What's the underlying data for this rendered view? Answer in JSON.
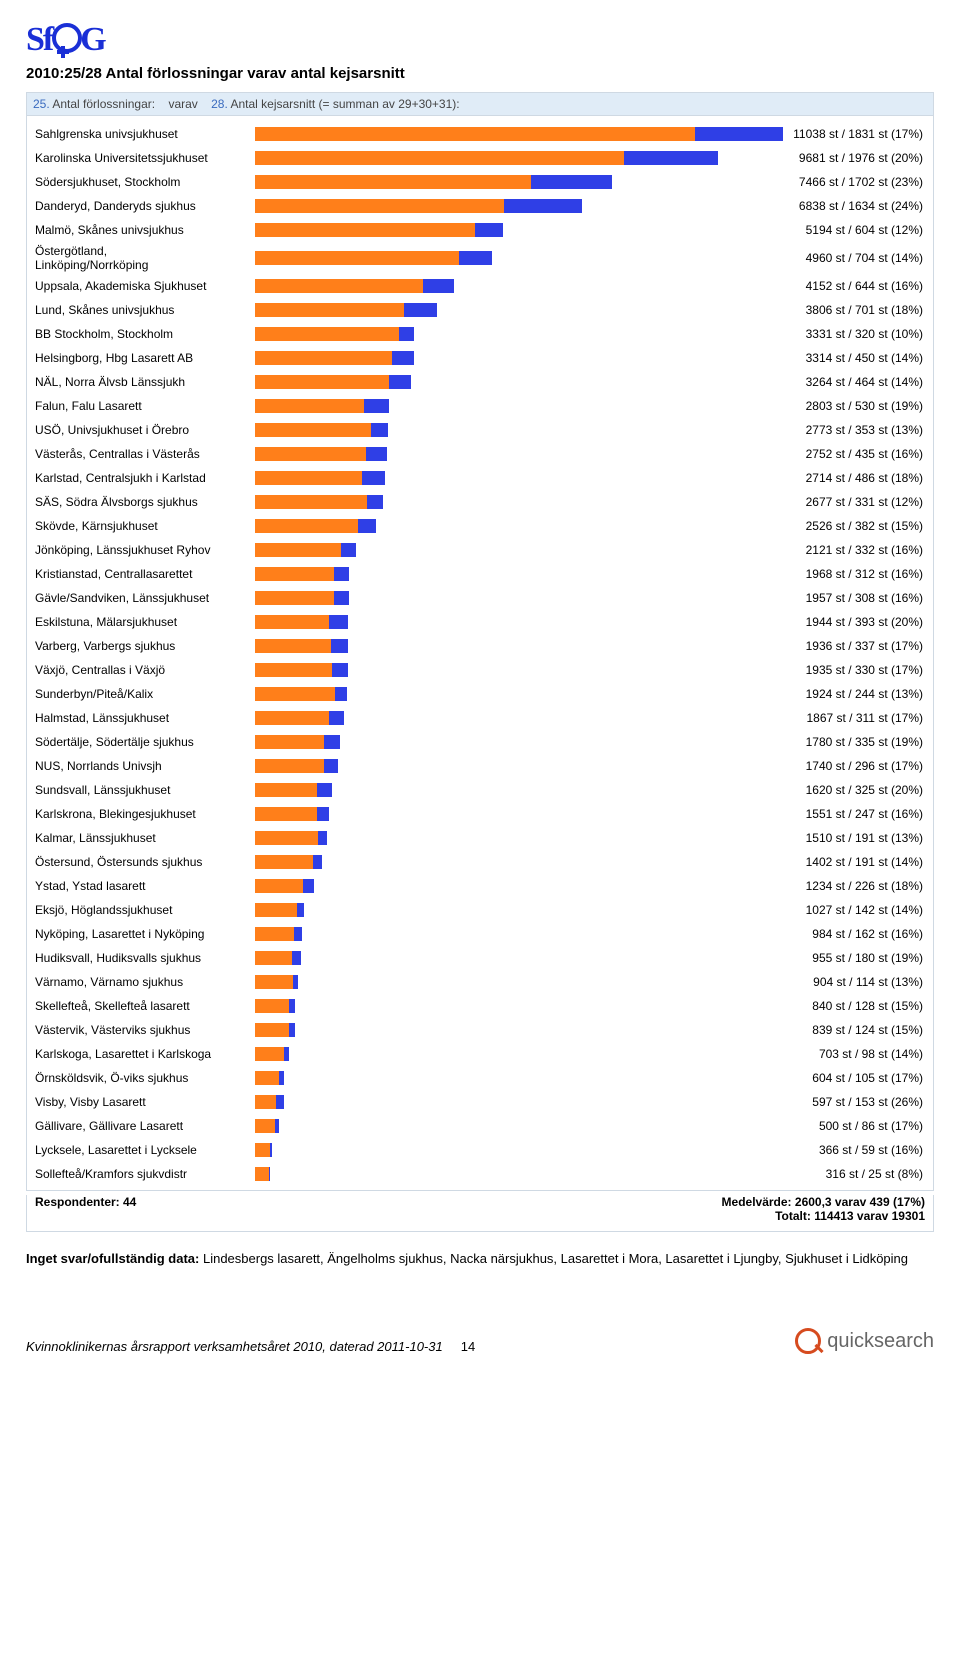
{
  "logo_text_left": "Sf",
  "logo_text_right": "G",
  "title": "2010:25/28 Antal förlossningar varav antal kejsarsnitt",
  "chart_header_html": {
    "n1": "25.",
    "t1": "Antal förlossningar:",
    "mid": "varav",
    "n2": "28.",
    "t2": "Antal kejsarsnitt (= summan av 29+30+31):"
  },
  "chart": {
    "type": "stacked-bar-horizontal",
    "max_total": 11038,
    "bar_colors": {
      "deliveries_minus_cs": "#ff7f1a",
      "csections": "#2f3fe6"
    },
    "background_color": "#ffffff",
    "font_size_labels": 12,
    "rows": [
      {
        "label": "Sahlgrenska univsjukhuset",
        "total": 11038,
        "cs": 1831,
        "pct": 17
      },
      {
        "label": "Karolinska Universitetssjukhuset",
        "total": 9681,
        "cs": 1976,
        "pct": 20
      },
      {
        "label": "Södersjukhuset, Stockholm",
        "total": 7466,
        "cs": 1702,
        "pct": 23
      },
      {
        "label": "Danderyd, Danderyds sjukhus",
        "total": 6838,
        "cs": 1634,
        "pct": 24
      },
      {
        "label": "Malmö, Skånes univsjukhus",
        "total": 5194,
        "cs": 604,
        "pct": 12
      },
      {
        "label": "Östergötland,\nLinköping/Norrköping",
        "total": 4960,
        "cs": 704,
        "pct": 14
      },
      {
        "label": "Uppsala, Akademiska Sjukhuset",
        "total": 4152,
        "cs": 644,
        "pct": 16
      },
      {
        "label": "Lund, Skånes univsjukhus",
        "total": 3806,
        "cs": 701,
        "pct": 18
      },
      {
        "label": "BB Stockholm, Stockholm",
        "total": 3331,
        "cs": 320,
        "pct": 10
      },
      {
        "label": "Helsingborg, Hbg Lasarett AB",
        "total": 3314,
        "cs": 450,
        "pct": 14
      },
      {
        "label": "NÄL, Norra Älvsb Länssjukh",
        "total": 3264,
        "cs": 464,
        "pct": 14
      },
      {
        "label": "Falun, Falu Lasarett",
        "total": 2803,
        "cs": 530,
        "pct": 19
      },
      {
        "label": "USÖ, Univsjukhuset i Örebro",
        "total": 2773,
        "cs": 353,
        "pct": 13
      },
      {
        "label": "Västerås, Centrallas i Västerås",
        "total": 2752,
        "cs": 435,
        "pct": 16
      },
      {
        "label": "Karlstad, Centralsjukh i Karlstad",
        "total": 2714,
        "cs": 486,
        "pct": 18
      },
      {
        "label": "SÄS, Södra Älvsborgs sjukhus",
        "total": 2677,
        "cs": 331,
        "pct": 12
      },
      {
        "label": "Skövde, Kärnsjukhuset",
        "total": 2526,
        "cs": 382,
        "pct": 15
      },
      {
        "label": "Jönköping, Länssjukhuset Ryhov",
        "total": 2121,
        "cs": 332,
        "pct": 16
      },
      {
        "label": "Kristianstad, Centrallasarettet",
        "total": 1968,
        "cs": 312,
        "pct": 16
      },
      {
        "label": "Gävle/Sandviken, Länssjukhuset",
        "total": 1957,
        "cs": 308,
        "pct": 16
      },
      {
        "label": "Eskilstuna, Mälarsjukhuset",
        "total": 1944,
        "cs": 393,
        "pct": 20
      },
      {
        "label": "Varberg, Varbergs sjukhus",
        "total": 1936,
        "cs": 337,
        "pct": 17
      },
      {
        "label": "Växjö, Centrallas i Växjö",
        "total": 1935,
        "cs": 330,
        "pct": 17
      },
      {
        "label": "Sunderbyn/Piteå/Kalix",
        "total": 1924,
        "cs": 244,
        "pct": 13
      },
      {
        "label": "Halmstad, Länssjukhuset",
        "total": 1867,
        "cs": 311,
        "pct": 17
      },
      {
        "label": "Södertälje, Södertälje sjukhus",
        "total": 1780,
        "cs": 335,
        "pct": 19
      },
      {
        "label": "NUS, Norrlands Univsjh",
        "total": 1740,
        "cs": 296,
        "pct": 17
      },
      {
        "label": "Sundsvall, Länssjukhuset",
        "total": 1620,
        "cs": 325,
        "pct": 20
      },
      {
        "label": "Karlskrona, Blekingesjukhuset",
        "total": 1551,
        "cs": 247,
        "pct": 16
      },
      {
        "label": "Kalmar, Länssjukhuset",
        "total": 1510,
        "cs": 191,
        "pct": 13
      },
      {
        "label": "Östersund, Östersunds sjukhus",
        "total": 1402,
        "cs": 191,
        "pct": 14
      },
      {
        "label": "Ystad, Ystad lasarett",
        "total": 1234,
        "cs": 226,
        "pct": 18
      },
      {
        "label": "Eksjö, Höglandssjukhuset",
        "total": 1027,
        "cs": 142,
        "pct": 14
      },
      {
        "label": "Nyköping, Lasarettet i Nyköping",
        "total": 984,
        "cs": 162,
        "pct": 16
      },
      {
        "label": "Hudiksvall, Hudiksvalls sjukhus",
        "total": 955,
        "cs": 180,
        "pct": 19
      },
      {
        "label": "Värnamo, Värnamo sjukhus",
        "total": 904,
        "cs": 114,
        "pct": 13
      },
      {
        "label": "Skellefteå, Skellefteå lasarett",
        "total": 840,
        "cs": 128,
        "pct": 15
      },
      {
        "label": "Västervik, Västerviks sjukhus",
        "total": 839,
        "cs": 124,
        "pct": 15
      },
      {
        "label": "Karlskoga, Lasarettet i Karlskoga",
        "total": 703,
        "cs": 98,
        "pct": 14
      },
      {
        "label": "Örnsköldsvik, Ö-viks sjukhus",
        "total": 604,
        "cs": 105,
        "pct": 17
      },
      {
        "label": "Visby, Visby Lasarett",
        "total": 597,
        "cs": 153,
        "pct": 26
      },
      {
        "label": "Gällivare, Gällivare Lasarett",
        "total": 500,
        "cs": 86,
        "pct": 17
      },
      {
        "label": "Lycksele, Lasarettet i Lycksele",
        "total": 366,
        "cs": 59,
        "pct": 16
      },
      {
        "label": "Sollefteå/Kramfors sjukvdistr",
        "total": 316,
        "cs": 25,
        "pct": 8
      }
    ]
  },
  "summary": {
    "respondents_label": "Respondenter: 44",
    "mean_line": "Medelvärde: 2600,3 varav 439 (17%)",
    "total_line": "Totalt: 114413 varav 19301"
  },
  "notes_label": "Inget svar/ofullständig data:",
  "notes_body": " Lindesbergs lasarett, Ängelholms sjukhus, Nacka närsjukhus, Lasarettet i Mora, Lasarettet i Ljungby, Sjukhuset i Lidköping",
  "footer_text": "Kvinnoklinikernas årsrapport verksamhetsåret 2010, daterad 2011-10-31",
  "footer_page": "14",
  "qs_brand": "quicksearch"
}
